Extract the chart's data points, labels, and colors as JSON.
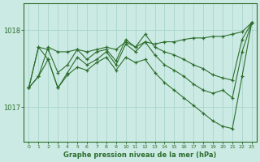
{
  "bg_color": "#cceae4",
  "grid_color": "#aad4ce",
  "line_color": "#2d6e2d",
  "title": "Graphe pression niveau de la mer (hPa)",
  "ylabel_ticks": [
    1017,
    1018
  ],
  "xlim": [
    -0.5,
    23.5
  ],
  "ylim": [
    1016.55,
    1018.35
  ],
  "lines": [
    {
      "x": [
        0,
        1,
        2,
        3,
        4,
        5,
        6,
        7,
        8,
        9,
        10,
        11,
        12,
        13,
        14,
        15,
        16,
        17,
        18,
        19,
        20,
        21,
        22,
        23
      ],
      "y": [
        1017.25,
        1017.4,
        1017.78,
        1017.72,
        1017.72,
        1017.75,
        1017.72,
        1017.75,
        1017.78,
        1017.75,
        1017.85,
        1017.78,
        1017.85,
        1017.82,
        1017.85,
        1017.85,
        1017.88,
        1017.9,
        1017.9,
        1017.92,
        1017.92,
        1017.95,
        1017.98,
        1018.1
      ]
    },
    {
      "x": [
        0,
        1,
        2,
        3,
        4,
        5,
        6,
        7,
        8,
        9,
        10,
        11,
        12,
        13,
        14,
        15,
        16,
        17,
        18,
        19,
        20,
        21,
        22,
        23
      ],
      "y": [
        1017.25,
        1017.78,
        1017.75,
        1017.45,
        1017.55,
        1017.75,
        1017.62,
        1017.72,
        1017.75,
        1017.6,
        1017.88,
        1017.78,
        1017.95,
        1017.78,
        1017.72,
        1017.68,
        1017.62,
        1017.55,
        1017.5,
        1017.42,
        1017.38,
        1017.35,
        1017.88,
        1018.1
      ]
    },
    {
      "x": [
        0,
        1,
        2,
        3,
        4,
        5,
        6,
        7,
        8,
        9,
        10,
        11,
        12,
        13,
        14,
        15,
        16,
        17,
        18,
        19,
        20,
        21,
        22,
        23
      ],
      "y": [
        1017.25,
        1017.78,
        1017.62,
        1017.25,
        1017.45,
        1017.65,
        1017.55,
        1017.62,
        1017.72,
        1017.55,
        1017.82,
        1017.72,
        1017.85,
        1017.68,
        1017.55,
        1017.48,
        1017.4,
        1017.3,
        1017.22,
        1017.18,
        1017.22,
        1017.12,
        1017.72,
        1018.1
      ]
    },
    {
      "x": [
        0,
        1,
        2,
        3,
        4,
        5,
        6,
        7,
        8,
        9,
        10,
        11,
        12,
        13,
        14,
        15,
        16,
        17,
        18,
        19,
        20,
        21,
        22,
        23
      ],
      "y": [
        1017.25,
        1017.4,
        1017.62,
        1017.25,
        1017.42,
        1017.52,
        1017.48,
        1017.58,
        1017.65,
        1017.48,
        1017.65,
        1017.58,
        1017.62,
        1017.45,
        1017.32,
        1017.22,
        1017.12,
        1017.02,
        1016.92,
        1016.82,
        1016.75,
        1016.72,
        1017.4,
        1018.1
      ]
    }
  ]
}
